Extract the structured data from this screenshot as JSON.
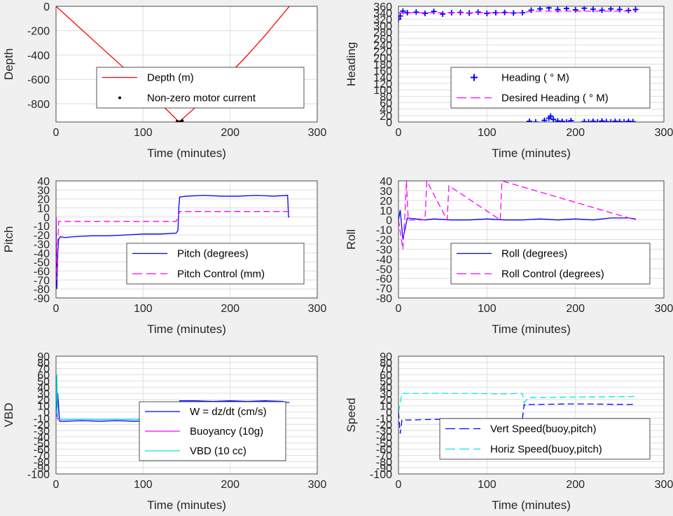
{
  "chart_data": [
    {
      "type": "line",
      "ylabel": "Depth",
      "xlabel": "Time (minutes)",
      "xlim": [
        0,
        300
      ],
      "ylim": [
        -950,
        0
      ],
      "xticks": [
        0,
        100,
        200,
        300
      ],
      "yticks": [
        0,
        -200,
        -400,
        -600,
        -800
      ],
      "grid": true,
      "legend_position": "center-right",
      "series": [
        {
          "name": "Depth (m)",
          "color": "#ff0000",
          "style": "solid",
          "x": [
            0,
            20,
            40,
            60,
            80,
            100,
            120,
            140,
            141,
            142,
            160,
            180,
            200,
            220,
            240,
            268
          ],
          "y": [
            0,
            -130,
            -260,
            -390,
            -520,
            -650,
            -800,
            -940,
            -950,
            -945,
            -830,
            -690,
            -550,
            -400,
            -240,
            0
          ]
        },
        {
          "name": "Non-zero motor current",
          "color": "#000000",
          "style": "dots",
          "x": [
            139,
            140,
            141,
            142,
            143,
            144,
            145
          ],
          "y": [
            -945,
            -948,
            -950,
            -950,
            -948,
            -945,
            -940
          ]
        }
      ]
    },
    {
      "type": "scatter",
      "ylabel": "Heading",
      "xlabel": "Time (minutes)",
      "xlim": [
        0,
        300
      ],
      "ylim": [
        0,
        360
      ],
      "xticks": [
        0,
        100,
        200,
        300
      ],
      "yticks": [
        0,
        20,
        40,
        60,
        80,
        100,
        120,
        140,
        160,
        180,
        200,
        220,
        240,
        260,
        280,
        300,
        320,
        340,
        360
      ],
      "grid": true,
      "legend_position": "center-right",
      "series": [
        {
          "name": "Heading ( ° M)",
          "color": "#0000ff",
          "style": "plus",
          "x": [
            0,
            2,
            5,
            10,
            20,
            30,
            40,
            50,
            60,
            70,
            80,
            90,
            100,
            110,
            120,
            130,
            140,
            150,
            160,
            170,
            180,
            190,
            200,
            210,
            220,
            230,
            240,
            250,
            260,
            268,
            148,
            155,
            165,
            170,
            172,
            175,
            180,
            185,
            190,
            195,
            210,
            215,
            220,
            225,
            230,
            235,
            240,
            245,
            250,
            255,
            260,
            265
          ],
          "y": [
            320,
            330,
            345,
            340,
            342,
            338,
            344,
            336,
            340,
            341,
            339,
            342,
            338,
            340,
            341,
            339,
            340,
            348,
            352,
            355,
            350,
            353,
            349,
            354,
            351,
            348,
            352,
            350,
            347,
            350,
            2,
            0,
            5,
            12,
            18,
            8,
            3,
            2,
            0,
            4,
            1,
            0,
            2,
            0,
            3,
            1,
            0,
            2,
            1,
            0,
            2,
            1
          ]
        },
        {
          "name": "Desired Heading ( ° M)",
          "color": "#ff00ff",
          "style": "dashed",
          "x": [
            0,
            140,
            150,
            268
          ],
          "y": [
            340,
            340,
            345,
            345
          ]
        }
      ]
    },
    {
      "type": "line",
      "ylabel": "Pitch",
      "xlabel": "Time (minutes)",
      "xlim": [
        0,
        300
      ],
      "ylim": [
        -90,
        40
      ],
      "xticks": [
        0,
        100,
        200,
        300
      ],
      "yticks": [
        40,
        30,
        20,
        10,
        0,
        -10,
        -20,
        -30,
        -40,
        -50,
        -60,
        -70,
        -80,
        -90
      ],
      "grid": true,
      "legend_position": "bottom-right",
      "series": [
        {
          "name": "Pitch (degrees)",
          "color": "#0000ff",
          "style": "solid",
          "x": [
            0,
            1,
            2,
            3,
            5,
            10,
            20,
            40,
            60,
            80,
            100,
            120,
            138,
            140,
            141,
            142,
            150,
            170,
            190,
            210,
            230,
            250,
            266,
            267,
            268
          ],
          "y": [
            0,
            -80,
            -40,
            -25,
            -22,
            -23,
            -22,
            -21,
            -21,
            -20,
            -19,
            -19,
            -18,
            -15,
            10,
            22,
            23,
            24,
            23,
            23,
            24,
            23,
            24,
            0,
            0
          ]
        },
        {
          "name": "Pitch Control (mm)",
          "color": "#ff00ff",
          "style": "dashed",
          "x": [
            0,
            1,
            2,
            3,
            5,
            60,
            120,
            138,
            140,
            142,
            200,
            268
          ],
          "y": [
            0,
            -70,
            -30,
            -5,
            -5,
            -5,
            -5,
            -5,
            0,
            6,
            6,
            6
          ]
        }
      ]
    },
    {
      "type": "line",
      "ylabel": "Roll",
      "xlabel": "Time (minutes)",
      "xlim": [
        0,
        300
      ],
      "ylim": [
        -80,
        40
      ],
      "xticks": [
        0,
        100,
        200,
        300
      ],
      "yticks": [
        40,
        30,
        20,
        10,
        0,
        -10,
        -20,
        -30,
        -40,
        -50,
        -60,
        -70,
        -80
      ],
      "grid": true,
      "legend_position": "bottom-right",
      "series": [
        {
          "name": "Roll (degrees)",
          "color": "#0000ff",
          "style": "solid",
          "x": [
            0,
            2,
            5,
            10,
            20,
            30,
            40,
            60,
            80,
            100,
            120,
            140,
            160,
            180,
            200,
            220,
            240,
            260,
            268
          ],
          "y": [
            0,
            10,
            -20,
            2,
            1,
            0,
            1,
            0,
            0,
            1,
            0,
            0,
            1,
            0,
            1,
            0,
            2,
            2,
            1
          ]
        },
        {
          "name": "Roll Control (degrees)",
          "color": "#ff00ff",
          "style": "dashed",
          "x": [
            0,
            5,
            7,
            9,
            11,
            30,
            32,
            55,
            57,
            115,
            117,
            268
          ],
          "y": [
            0,
            -30,
            0,
            40,
            0,
            0,
            40,
            0,
            35,
            0,
            40,
            0
          ]
        }
      ]
    },
    {
      "type": "line",
      "ylabel": "VBD",
      "xlabel": "Time (minutes)",
      "xlim": [
        0,
        300
      ],
      "ylim": [
        -100,
        90
      ],
      "xticks": [
        0,
        100,
        200,
        300
      ],
      "yticks": [
        90,
        80,
        70,
        60,
        50,
        40,
        30,
        20,
        10,
        0,
        -10,
        -20,
        -30,
        -40,
        -50,
        -60,
        -70,
        -80,
        -90,
        -100
      ],
      "grid": true,
      "legend_position": "bottom-right",
      "series": [
        {
          "name": "W = dz/dt (cm/s)",
          "color": "#0000ff",
          "style": "solid",
          "x": [
            0,
            2,
            4,
            10,
            30,
            50,
            70,
            90,
            110,
            130,
            140,
            142,
            160,
            180,
            200,
            220,
            240,
            260,
            268
          ],
          "y": [
            0,
            30,
            -15,
            -15,
            -14,
            -15,
            -14,
            -15,
            -14,
            -14,
            -14,
            18,
            18,
            17,
            18,
            17,
            18,
            17,
            15
          ]
        },
        {
          "name": "Buoyancy (10g)",
          "color": "#ff00ff",
          "style": "solid",
          "x": [
            0,
            2,
            4,
            140,
            142,
            268
          ],
          "y": [
            0,
            -12,
            -12,
            -12,
            15,
            15
          ]
        },
        {
          "name": "VBD (10 cc)",
          "color": "#00e5ee",
          "style": "solid",
          "x": [
            0,
            1,
            2,
            4,
            140,
            142,
            268
          ],
          "y": [
            0,
            60,
            -10,
            -12,
            -12,
            16,
            16
          ]
        }
      ]
    },
    {
      "type": "line",
      "ylabel": "Speed",
      "xlabel": "Time (minutes)",
      "xlim": [
        0,
        300
      ],
      "ylim": [
        -100,
        90
      ],
      "xticks": [
        0,
        100,
        200,
        300
      ],
      "yticks": [
        90,
        80,
        70,
        60,
        50,
        40,
        30,
        20,
        10,
        0,
        -10,
        -20,
        -30,
        -40,
        -50,
        -60,
        -70,
        -80,
        -90,
        -100
      ],
      "grid": true,
      "legend_position": "bottom-right",
      "series": [
        {
          "name": "Vert Speed(buoy,pitch)",
          "color": "#0000ff",
          "style": "dashed",
          "x": [
            0,
            2,
            4,
            10,
            40,
            80,
            120,
            138,
            140,
            142,
            144,
            146,
            150,
            200,
            268
          ],
          "y": [
            0,
            -35,
            -12,
            -13,
            -12,
            -12,
            -12,
            -12,
            -12,
            12,
            10,
            12,
            12,
            13,
            12
          ]
        },
        {
          "name": "Horiz Speed(buoy,pitch)",
          "color": "#00e5ee",
          "style": "dashed",
          "x": [
            0,
            2,
            4,
            10,
            40,
            80,
            120,
            138,
            140,
            142,
            144,
            146,
            150,
            200,
            268
          ],
          "y": [
            0,
            15,
            30,
            30,
            30,
            30,
            29,
            30,
            30,
            15,
            18,
            22,
            23,
            24,
            25
          ]
        }
      ]
    }
  ]
}
